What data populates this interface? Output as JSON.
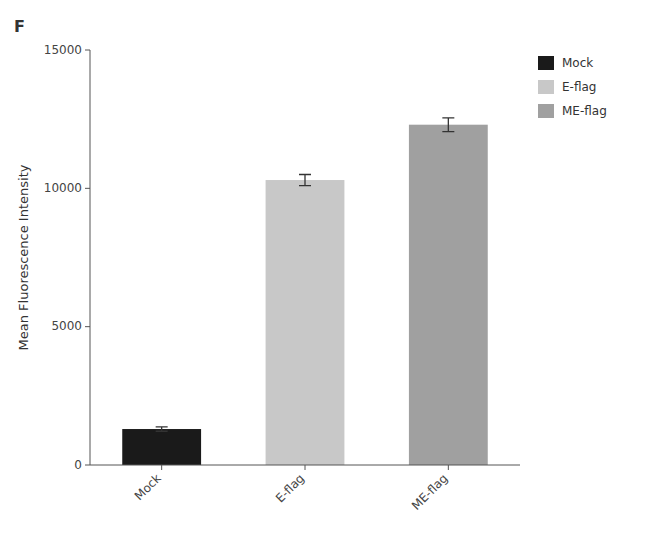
{
  "chart_data": {
    "type": "bar",
    "categories": [
      "Mock",
      "E-flag",
      "ME-flag"
    ],
    "values": [
      1300,
      10300,
      12300
    ],
    "errors": [
      80,
      200,
      250
    ],
    "colors": [
      "#1a1a1a",
      "#c8c8c8",
      "#a0a0a0"
    ],
    "ylabel": "Mean Fluorescence Intensity",
    "ylim": [
      0,
      15000
    ],
    "yticks": [
      0,
      5000,
      10000,
      15000
    ],
    "annotations": [
      "F"
    ],
    "legend": "right",
    "grid": false
  }
}
